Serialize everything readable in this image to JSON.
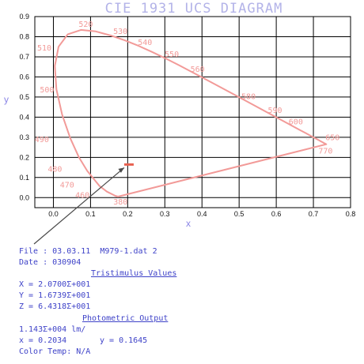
{
  "chart_data": {
    "type": "line",
    "title": "CIE 1931 UCS DIAGRAM",
    "xlabel": "x",
    "ylabel": "y",
    "xlim": [
      -0.05,
      0.8
    ],
    "ylim": [
      -0.05,
      0.9
    ],
    "x_ticks": [
      "0.0",
      "0.1",
      "0.2",
      "0.3",
      "0.4",
      "0.5",
      "0.6",
      "0.7",
      "0.8"
    ],
    "y_ticks": [
      "0.0",
      "0.1",
      "0.2",
      "0.3",
      "0.4",
      "0.5",
      "0.6",
      "0.7",
      "0.8",
      "0.9"
    ],
    "grid": true,
    "series": [
      {
        "type": "line",
        "x": [
          0.1741,
          0.1738,
          0.1666,
          0.144,
          0.1241,
          0.0913,
          0.0687,
          0.0454,
          0.0235,
          0.0082,
          0.0039,
          0.0139,
          0.0389,
          0.0743,
          0.1142,
          0.1547,
          0.1929,
          0.2296,
          0.2658,
          0.3016,
          0.3373,
          0.3731,
          0.4087,
          0.4441,
          0.4788,
          0.5125,
          0.5448,
          0.5752,
          0.6029,
          0.627,
          0.6482,
          0.6658,
          0.6801,
          0.6915,
          0.7006,
          0.7079,
          0.714,
          0.719,
          0.723,
          0.726,
          0.7283,
          0.73,
          0.7311,
          0.732,
          0.7327,
          0.7334,
          0.734,
          0.7344,
          0.7347,
          0.7347,
          0.1741
        ],
        "y": [
          0.005,
          0.0049,
          0.0089,
          0.0297,
          0.0578,
          0.1327,
          0.2007,
          0.295,
          0.4127,
          0.5384,
          0.6548,
          0.7502,
          0.812,
          0.8338,
          0.8262,
          0.8059,
          0.7816,
          0.7543,
          0.7243,
          0.6923,
          0.6589,
          0.6245,
          0.5896,
          0.5547,
          0.5202,
          0.4866,
          0.4544,
          0.4242,
          0.3965,
          0.3725,
          0.3514,
          0.334,
          0.3197,
          0.3083,
          0.2993,
          0.292,
          0.2859,
          0.2809,
          0.277,
          0.274,
          0.2717,
          0.27,
          0.2689,
          0.268,
          0.2673,
          0.2666,
          0.266,
          0.2656,
          0.2653,
          0.2653,
          0.005
        ]
      }
    ],
    "wavelength_labels": [
      {
        "text": "380",
        "x": 0.1741,
        "y": 0.005
      },
      {
        "text": "460",
        "x": 0.144,
        "y": 0.0297
      },
      {
        "text": "470",
        "x": 0.1241,
        "y": 0.0578
      },
      {
        "text": "480",
        "x": 0.0913,
        "y": 0.1327
      },
      {
        "text": "490",
        "x": 0.0454,
        "y": 0.295
      },
      {
        "text": "500",
        "x": 0.0082,
        "y": 0.5384
      },
      {
        "text": "510",
        "x": 0.0139,
        "y": 0.7502
      },
      {
        "text": "520",
        "x": 0.0743,
        "y": 0.8338
      },
      {
        "text": "530",
        "x": 0.1547,
        "y": 0.8059
      },
      {
        "text": "540",
        "x": 0.2296,
        "y": 0.7543
      },
      {
        "text": "550",
        "x": 0.3016,
        "y": 0.6923
      },
      {
        "text": "560",
        "x": 0.3731,
        "y": 0.6245
      },
      {
        "text": "580",
        "x": 0.5125,
        "y": 0.4866
      },
      {
        "text": "590",
        "x": 0.5752,
        "y": 0.4242
      },
      {
        "text": "600",
        "x": 0.627,
        "y": 0.3725
      },
      {
        "text": "650",
        "x": 0.726,
        "y": 0.274
      },
      {
        "text": "770",
        "x": 0.7347,
        "y": 0.2653
      }
    ],
    "measured_point": {
      "x": 0.2034,
      "y": 0.1645
    }
  },
  "colors": {
    "locus": "#f29a98",
    "grid": "#000000",
    "title": "#b3b3e8",
    "axis_letter": "#8b86e6",
    "info_text": "#3e42c8",
    "pointer": "#4a4a4a",
    "marker": "#e8604f"
  },
  "info": {
    "file_line": "File : 03.03.11  M979-1.dat 2",
    "date_line": "Date : 030904",
    "tristimulus_heading": "Tristimulus Values",
    "x_line": "X = 2.0700Σ+001",
    "y_line": "Y = 1.6739Σ+001",
    "z_line": "Z = 6.4318Σ+001",
    "photometric_heading": "Photometric Output",
    "photometric_value": "1.143Σ+004 lm/",
    "chroma_x": "x = 0.2034",
    "chroma_y": "y = 0.1645",
    "color_temp": "Color Temp: N/A"
  }
}
